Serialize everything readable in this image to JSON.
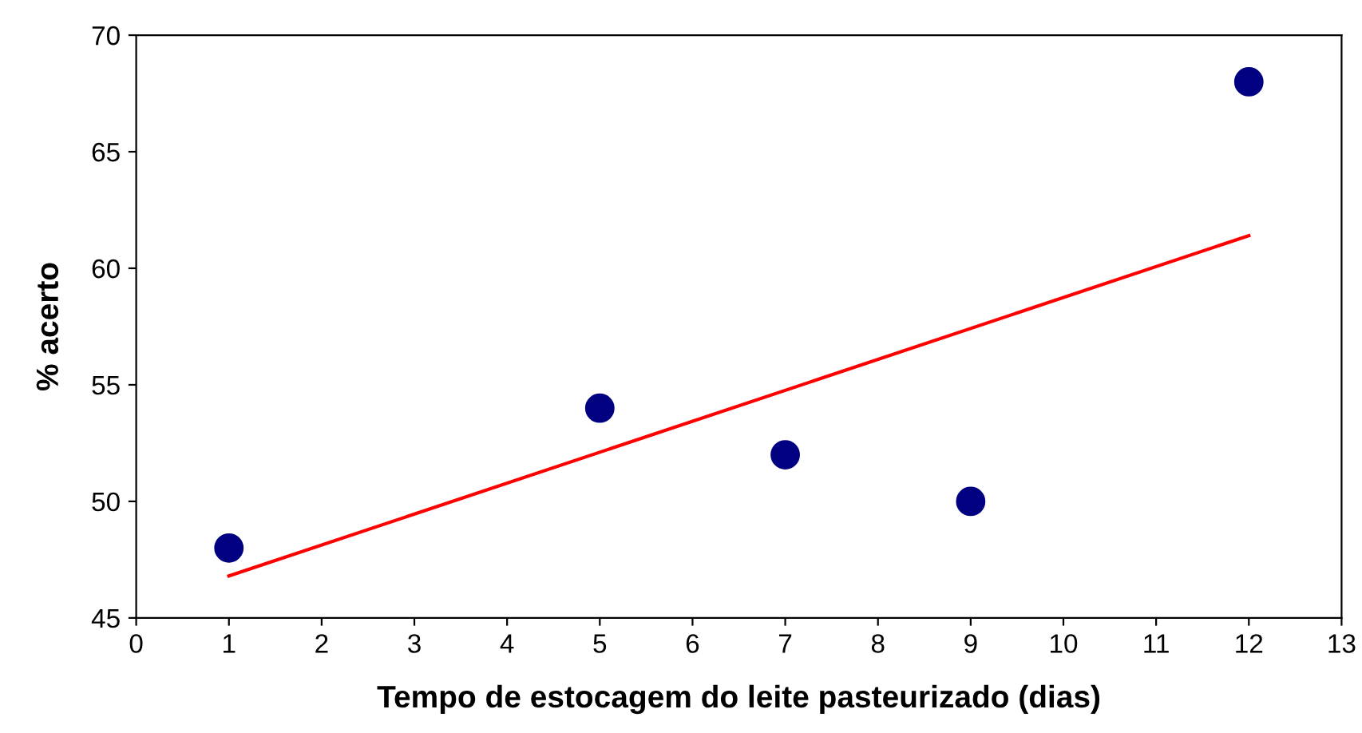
{
  "chart_data": {
    "type": "scatter",
    "xlabel": "Tempo de estocagem do leite pasteurizado (dias)",
    "ylabel": "% acerto",
    "series": [
      {
        "color": "#000080",
        "x": [
          1,
          5,
          7,
          9,
          12
        ],
        "values": [
          48,
          54,
          52,
          50,
          68
        ],
        "marker": "circle"
      },
      {
        "type": "line",
        "color": "#ff0000",
        "x": [
          1,
          12
        ],
        "values": [
          46.8,
          61.4
        ],
        "marker": "none",
        "line_style": "solid"
      }
    ],
    "xlim": [
      0,
      13
    ],
    "xticks": [
      0,
      1,
      2,
      3,
      4,
      5,
      6,
      7,
      8,
      9,
      10,
      11,
      12,
      13
    ],
    "ylim": [
      45,
      70
    ],
    "yticks": [
      45,
      50,
      55,
      60,
      65,
      70
    ],
    "grid": false
  }
}
